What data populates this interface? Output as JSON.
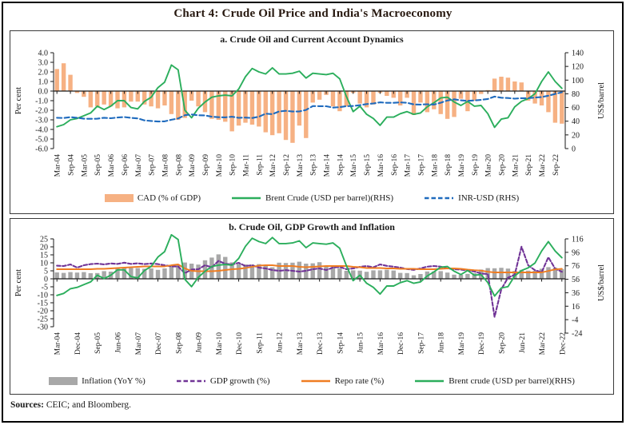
{
  "title": "Chart 4: Crude Oil Price and India's Macroeconomy",
  "source": {
    "label": "Sources:",
    "text": " CEIC; and Bloomberg."
  },
  "colors": {
    "cad_bar": "#F6B183",
    "brent_green": "#2BAE5C",
    "inr_blue": "#1F6BBE",
    "inflation_gray": "#A8A8A8",
    "gdp_purple": "#703396",
    "repo_orange": "#EF7D22",
    "axis": "#1a1a1a"
  },
  "chart_data": [
    {
      "id": "panel-a",
      "type": "combo",
      "title": "a. Crude Oil and Current Account Dynamics",
      "ylabel_left": "Per cent",
      "ylabel_right": "US$/barrel",
      "left_ticks": [
        "4.0",
        "3.0",
        "2.0",
        "1.0",
        "0.0",
        "-1.0",
        "-2.0",
        "-3.0",
        "-4.0",
        "-5.0",
        "-6.0"
      ],
      "right_ticks": [
        "140",
        "120",
        "100",
        "80",
        "60",
        "40",
        "20",
        "0"
      ],
      "n_points": 76,
      "label_step": 2,
      "x_labels": [
        "Mar-04",
        "Sep-04",
        "Mar-05",
        "Sep-05",
        "Mar-06",
        "Sep-06",
        "Mar-07",
        "Sep-07",
        "Mar-08",
        "Sep-08",
        "Mar-09",
        "Sep-09",
        "Mar-10",
        "Sep-10",
        "Mar-11",
        "Sep-11",
        "Mar-12",
        "Sep-12",
        "Mar-13",
        "Sep-13",
        "Mar-14",
        "Sep-14",
        "Mar-15",
        "Sep-15",
        "Mar-16",
        "Sep-16",
        "Mar-17",
        "Sep-17",
        "Mar-18",
        "Sep-18",
        "Mar-19",
        "Sep-19",
        "Mar-20",
        "Sep-20",
        "Mar-21",
        "Sep-21",
        "Mar-22",
        "Sep-22"
      ],
      "legend_position": "bottom",
      "grid": false,
      "series": [
        {
          "name": "CAD (% of GDP)",
          "type": "bar",
          "axis": "left",
          "color": "#F6B183",
          "values": [
            2.3,
            2.9,
            1.7,
            -0.2,
            -0.6,
            -1.7,
            -1.6,
            -1.4,
            -1.6,
            -1.8,
            -1.7,
            -1.1,
            -1.1,
            -1.4,
            -1.6,
            -1.8,
            -1.5,
            -2.4,
            -3.0,
            -2.8,
            -1.0,
            -1.6,
            -2.2,
            -2.9,
            -3.0,
            -3.2,
            -4.2,
            -3.6,
            -3.3,
            -3.5,
            -3.7,
            -4.3,
            -4.6,
            -4.4,
            -5.1,
            -5.4,
            -3.6,
            -4.9,
            -1.2,
            -0.9,
            -0.4,
            -1.6,
            -2.1,
            -1.6,
            -0.2,
            -1.3,
            -1.7,
            -1.4,
            -0.2,
            -0.5,
            -0.7,
            -1.5,
            -0.7,
            -2.5,
            -1.2,
            -2.2,
            -1.9,
            -2.4,
            -2.9,
            -2.7,
            -0.8,
            -2.1,
            -1.0,
            -0.3,
            0.1,
            1.3,
            1.5,
            1.4,
            1.0,
            0.9,
            -1.0,
            -1.3,
            -1.5,
            -2.2,
            -3.3,
            -3.4
          ]
        },
        {
          "name": "Brent Crude (USD per barrel)(RHS)",
          "type": "line",
          "axis": "right",
          "color": "#2BAE5C",
          "values": [
            32,
            35,
            42,
            44,
            48,
            52,
            62,
            57,
            62,
            70,
            70,
            60,
            58,
            69,
            75,
            89,
            97,
            122,
            115,
            56,
            45,
            59,
            68,
            75,
            77,
            78,
            77,
            87,
            105,
            117,
            112,
            109,
            118,
            109,
            109,
            110,
            113,
            103,
            110,
            109,
            108,
            110,
            102,
            76,
            54,
            62,
            50,
            44,
            34,
            46,
            46,
            51,
            54,
            50,
            52,
            61,
            67,
            74,
            75,
            68,
            63,
            69,
            62,
            63,
            51,
            31,
            43,
            45,
            61,
            69,
            73,
            80,
            98,
            112,
            98,
            88
          ]
        },
        {
          "name": "INR-USD (RHS)",
          "type": "line",
          "dash": "6 3.5",
          "axis": "right",
          "color": "#1F6BBE",
          "values": [
            45.0,
            44.7,
            46.0,
            45.0,
            43.6,
            43.5,
            43.6,
            45.0,
            44.3,
            45.4,
            46.1,
            44.9,
            44.1,
            41.2,
            40.4,
            39.5,
            39.8,
            42.1,
            44.0,
            48.8,
            49.8,
            48.7,
            48.4,
            46.6,
            45.9,
            45.6,
            46.5,
            44.9,
            45.3,
            44.7,
            46.5,
            51.0,
            50.3,
            54.2,
            55.2,
            54.1,
            54.2,
            56.5,
            62.1,
            62.0,
            61.8,
            59.8,
            60.6,
            62.0,
            62.2,
            63.5,
            65.0,
            65.9,
            67.5,
            66.9,
            66.9,
            67.4,
            67.0,
            64.5,
            64.3,
            64.7,
            64.3,
            67.0,
            70.2,
            72.0,
            70.5,
            69.6,
            70.4,
            71.2,
            72.4,
            75.9,
            74.3,
            73.8,
            72.9,
            73.6,
            73.6,
            74.5,
            75.3,
            77.2,
            79.8,
            82.2
          ]
        }
      ]
    },
    {
      "id": "panel-b",
      "type": "combo",
      "title": "b. Crude Oil, GDP Growth and Inflation",
      "ylabel_left": "Per cent",
      "ylabel_right": "US$/barrel",
      "left_ticks": [
        "25",
        "20",
        "15",
        "10",
        "5",
        "0",
        "-5",
        "-10",
        "-15",
        "-20",
        "-25",
        "-30"
      ],
      "right_ticks": [
        "116",
        "96",
        "76",
        "56",
        "36",
        "16",
        "-4",
        "-24"
      ],
      "n_points": 76,
      "label_step": 3,
      "x_labels": [
        "Mar-04",
        "Dec-04",
        "Sep-05",
        "Jun-06",
        "Mar-07",
        "Dec-07",
        "Sep-08",
        "Jun-09",
        "Mar-10",
        "Dec-10",
        "Sep-11",
        "Jun-12",
        "Mar-13",
        "Dec-13",
        "Sep-14",
        "Jun-15",
        "Mar-16",
        "Dec-16",
        "Sep-17",
        "Jun-18",
        "Mar-19",
        "Dec-19",
        "Sep-20",
        "Jun-21",
        "Mar-22",
        "Dec-22"
      ],
      "legend_position": "bottom",
      "grid": false,
      "series": [
        {
          "name": "Inflation (YoY %)",
          "type": "bar",
          "axis": "left",
          "color": "#A8A8A8",
          "values": [
            4.0,
            3.7,
            4.2,
            3.9,
            4.2,
            3.5,
            3.6,
            4.8,
            4.5,
            6.5,
            6.7,
            6.8,
            6.7,
            6.3,
            6.5,
            5.6,
            6.5,
            7.8,
            9.0,
            10.2,
            9.5,
            8.9,
            11.6,
            13.3,
            15.3,
            13.7,
            10.3,
            9.2,
            9.0,
            8.9,
            9.2,
            8.4,
            7.2,
            10.1,
            9.9,
            10.1,
            10.7,
            9.5,
            9.7,
            10.4,
            8.2,
            7.8,
            6.7,
            5.0,
            5.3,
            5.1,
            4.4,
            5.3,
            5.3,
            5.7,
            5.2,
            3.7,
            3.6,
            2.2,
            3.0,
            4.6,
            4.6,
            4.8,
            3.9,
            2.6,
            2.5,
            3.1,
            3.5,
            5.8,
            6.7,
            6.6,
            6.9,
            6.4,
            4.9,
            5.6,
            5.1,
            5.0,
            6.3,
            7.3,
            7.0,
            6.1
          ]
        },
        {
          "name": "GDP growth (%)",
          "type": "line",
          "dash": "4.5 2.5",
          "axis": "left",
          "color": "#703396",
          "values": [
            8.2,
            8.0,
            9.0,
            7.0,
            8.5,
            9.2,
            9.5,
            9.0,
            9.6,
            9.3,
            10.1,
            9.3,
            9.7,
            9.2,
            9.6,
            9.2,
            8.5,
            7.8,
            7.7,
            3.5,
            5.8,
            6.0,
            8.5,
            7.2,
            11.2,
            9.4,
            9.0,
            10.0,
            8.0,
            8.5,
            7.0,
            6.5,
            5.5,
            5.0,
            5.4,
            5.0,
            4.5,
            5.0,
            6.0,
            6.5,
            5.5,
            7.0,
            7.5,
            6.0,
            6.5,
            7.5,
            8.0,
            7.2,
            9.0,
            8.1,
            7.6,
            7.0,
            6.1,
            5.6,
            6.5,
            7.6,
            8.0,
            7.6,
            6.5,
            6.0,
            5.8,
            5.2,
            4.6,
            3.3,
            3.0,
            -23.8,
            -6.6,
            0.7,
            2.5,
            20.1,
            8.4,
            5.4,
            4.1,
            13.5,
            6.3,
            4.4
          ]
        },
        {
          "name": "Repo rate (%)",
          "type": "line",
          "axis": "left",
          "color": "#EF7D22",
          "values": [
            6.0,
            6.0,
            6.0,
            6.0,
            6.0,
            6.0,
            6.25,
            6.25,
            6.5,
            6.75,
            7.0,
            7.25,
            7.5,
            7.75,
            7.75,
            7.75,
            7.75,
            8.5,
            9.0,
            6.5,
            5.0,
            4.75,
            4.75,
            4.75,
            5.0,
            5.5,
            6.0,
            6.25,
            6.75,
            7.5,
            8.25,
            8.5,
            8.5,
            8.0,
            8.0,
            8.0,
            7.5,
            7.25,
            7.5,
            7.75,
            8.0,
            8.0,
            8.0,
            8.0,
            7.5,
            7.25,
            6.75,
            6.75,
            6.75,
            6.5,
            6.5,
            6.25,
            6.25,
            6.25,
            6.0,
            6.0,
            6.0,
            6.25,
            6.5,
            6.5,
            6.25,
            5.75,
            5.4,
            5.15,
            4.4,
            4.0,
            4.0,
            4.0,
            4.0,
            4.0,
            4.0,
            4.0,
            4.0,
            4.9,
            5.9,
            6.25
          ]
        },
        {
          "name": "Brent crude (USD per barrel)(RHS)",
          "type": "line",
          "axis": "right",
          "color": "#2BAE5C",
          "values": [
            32,
            35,
            42,
            44,
            48,
            52,
            62,
            57,
            62,
            70,
            70,
            60,
            58,
            69,
            75,
            89,
            97,
            122,
            115,
            56,
            45,
            59,
            68,
            75,
            77,
            78,
            77,
            87,
            105,
            117,
            112,
            109,
            118,
            109,
            109,
            110,
            113,
            103,
            110,
            109,
            108,
            110,
            102,
            76,
            54,
            62,
            50,
            44,
            34,
            46,
            46,
            51,
            54,
            50,
            52,
            61,
            67,
            74,
            75,
            68,
            63,
            69,
            62,
            63,
            51,
            31,
            43,
            45,
            61,
            69,
            73,
            80,
            98,
            112,
            98,
            88
          ]
        }
      ]
    }
  ]
}
